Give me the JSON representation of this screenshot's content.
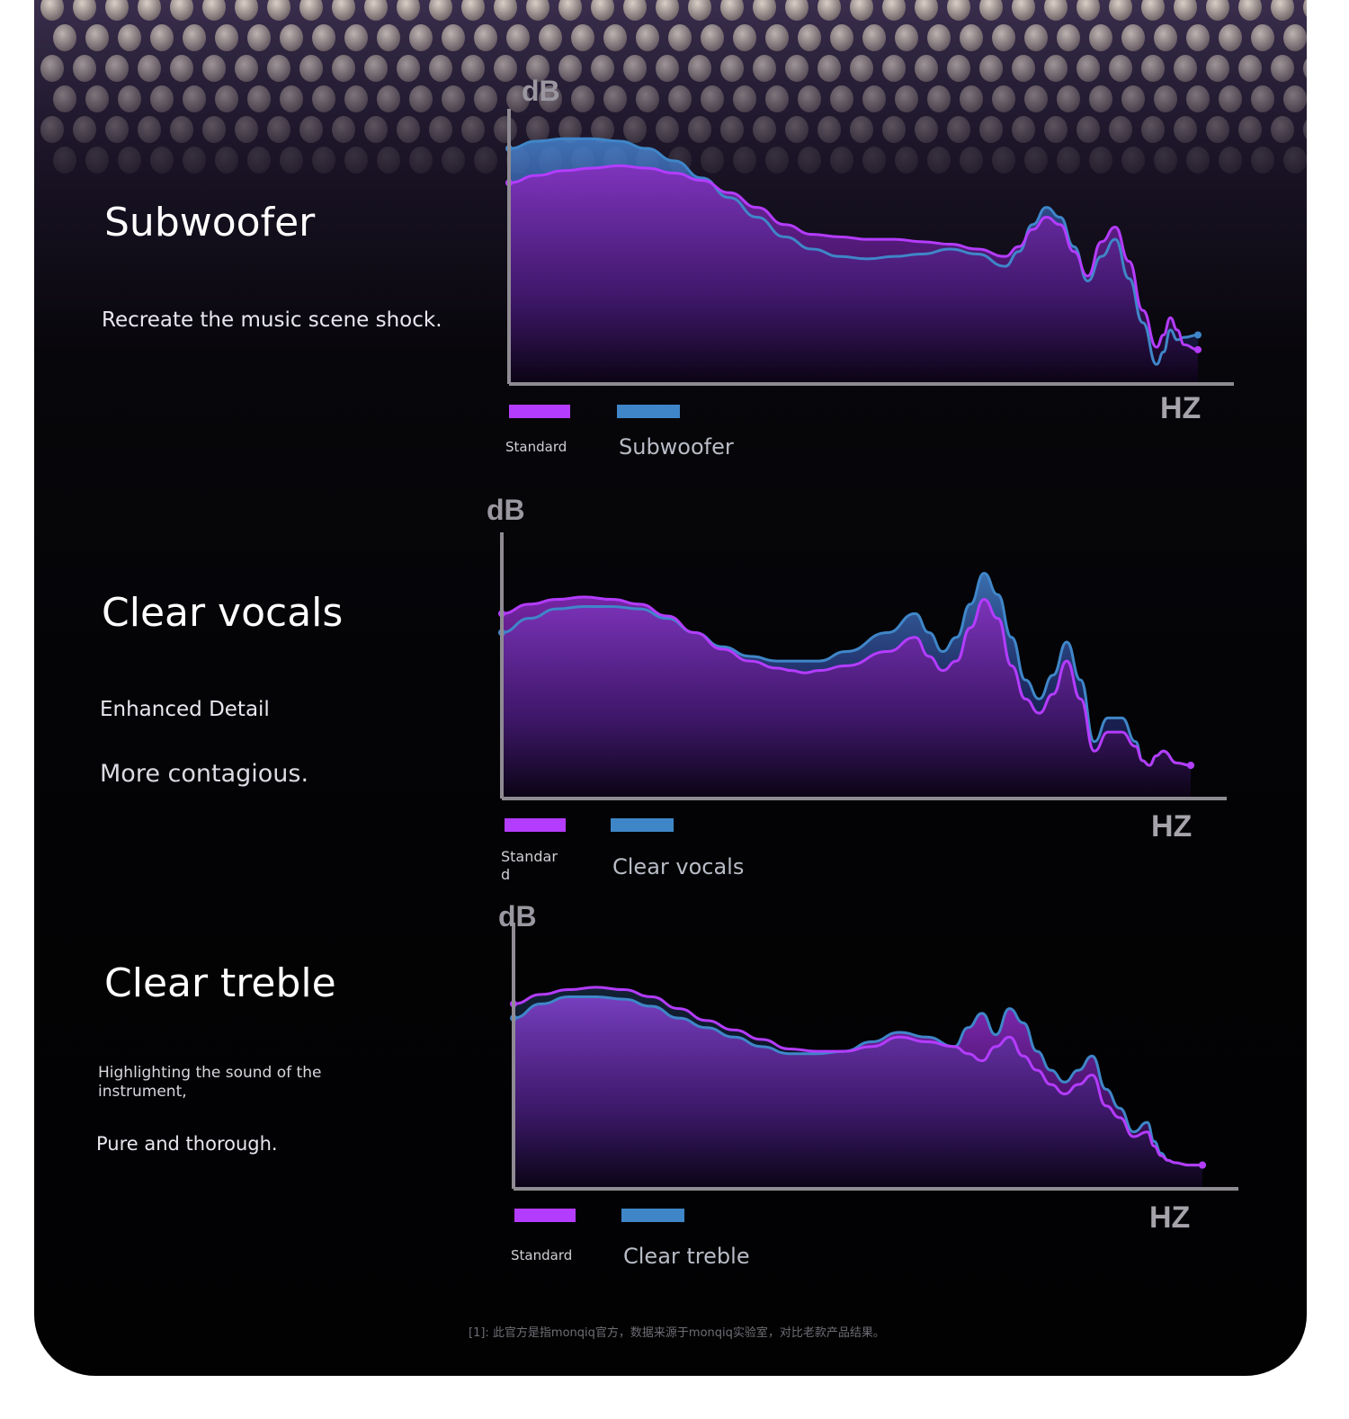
{
  "sections": [
    {
      "title": "Subwoofer",
      "lines": [
        "Recreate the music scene shock."
      ]
    },
    {
      "title": "Clear vocals",
      "lines": [
        "Enhanced Detail",
        "More contagious."
      ]
    },
    {
      "title": "Clear treble",
      "lines": [
        "Highlighting the sound of the instrument,",
        "Pure and thorough."
      ]
    }
  ],
  "footnote": "[1]: 此官方是指monqiq官方，数据来源于monqiq实验室，对比老款产品结果。",
  "colors": {
    "standard": "#b43cff",
    "alternate": "#3f86c8",
    "background": "#030305"
  },
  "chart_data": [
    {
      "type": "area",
      "ylabel": "dB",
      "xlabel": "HZ",
      "x": [
        0,
        4,
        8,
        12,
        16,
        20,
        24,
        28,
        32,
        36,
        40,
        44,
        48,
        52,
        56,
        60,
        64,
        68,
        72,
        74,
        76,
        78,
        80,
        82,
        84,
        86,
        88,
        90,
        92,
        94,
        95,
        96,
        97,
        98,
        100
      ],
      "series": [
        {
          "name": "Standard",
          "values": [
            72,
            75,
            77,
            78,
            79,
            78,
            76,
            73,
            68,
            62,
            55,
            51,
            50,
            49,
            49,
            48,
            47,
            45,
            42,
            46,
            53,
            58,
            55,
            44,
            34,
            48,
            54,
            40,
            20,
            5,
            10,
            17,
            12,
            6,
            4
          ]
        },
        {
          "name": "Subwoofer",
          "values": [
            86,
            89,
            90,
            90,
            89,
            86,
            81,
            74,
            66,
            58,
            50,
            45,
            42,
            41,
            42,
            43,
            45,
            43,
            38,
            44,
            55,
            62,
            58,
            46,
            32,
            42,
            49,
            33,
            15,
            -2,
            3,
            12,
            8,
            9,
            10
          ]
        }
      ]
    },
    {
      "type": "area",
      "ylabel": "dB",
      "xlabel": "HZ",
      "x": [
        0,
        4,
        8,
        12,
        16,
        20,
        24,
        28,
        32,
        36,
        40,
        42,
        44,
        46,
        50,
        56,
        60,
        62,
        64,
        66,
        68,
        70,
        72,
        74,
        76,
        78,
        80,
        82,
        84,
        86,
        88,
        90,
        92,
        93,
        94,
        95,
        96,
        98,
        100
      ],
      "series": [
        {
          "name": "Standard",
          "values": [
            68,
            72,
            74,
            75,
            74,
            72,
            67,
            60,
            53,
            48,
            45,
            44,
            43,
            44,
            46,
            52,
            58,
            50,
            44,
            48,
            62,
            74,
            66,
            46,
            32,
            26,
            34,
            48,
            32,
            10,
            18,
            18,
            12,
            6,
            4,
            8,
            10,
            5,
            4
          ]
        },
        {
          "name": "Clear vocals",
          "values": [
            60,
            66,
            70,
            71,
            71,
            70,
            66,
            60,
            54,
            50,
            48,
            48,
            48,
            48,
            52,
            60,
            68,
            60,
            52,
            58,
            72,
            85,
            76,
            58,
            40,
            32,
            42,
            56,
            40,
            14,
            24,
            24,
            14,
            6,
            4,
            8,
            10,
            5,
            4
          ]
        }
      ]
    },
    {
      "type": "area",
      "ylabel": "dB",
      "xlabel": "HZ",
      "x": [
        0,
        4,
        8,
        12,
        16,
        20,
        24,
        28,
        32,
        36,
        40,
        44,
        48,
        52,
        56,
        60,
        64,
        66,
        68,
        70,
        72,
        74,
        76,
        78,
        80,
        82,
        84,
        86,
        88,
        90,
        92,
        93,
        94,
        95,
        96,
        98,
        100
      ],
      "series": [
        {
          "name": "Standard",
          "values": [
            68,
            72,
            74,
            75,
            74,
            71,
            66,
            61,
            57,
            53,
            49,
            48,
            48,
            50,
            54,
            52,
            50,
            47,
            44,
            50,
            54,
            46,
            40,
            34,
            30,
            34,
            38,
            25,
            20,
            12,
            14,
            8,
            4,
            2,
            1,
            0,
            0
          ]
        },
        {
          "name": "Clear treble",
          "values": [
            62,
            68,
            71,
            71,
            70,
            67,
            62,
            58,
            54,
            50,
            47,
            47,
            48,
            52,
            56,
            54,
            50,
            58,
            64,
            55,
            66,
            60,
            48,
            40,
            35,
            40,
            46,
            32,
            24,
            14,
            18,
            10,
            5,
            2,
            1,
            0,
            0
          ]
        }
      ]
    }
  ],
  "legend": {
    "standard_label": "Standard",
    "standard_label_split": "Standar\nd"
  }
}
